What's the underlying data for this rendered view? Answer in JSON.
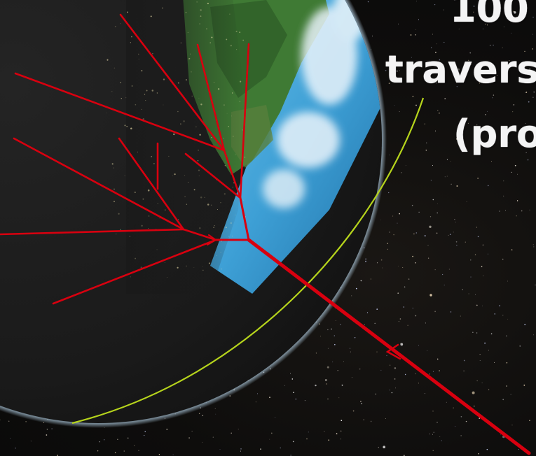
{
  "caption": {
    "line1": "100",
    "line2": "travers",
    "line3": "(pro"
  },
  "colors": {
    "space": "#0e0d0c",
    "earth_night": "#1b1b1b",
    "earth_ocean": "#3a9fd6",
    "earth_land": "#3f7a34",
    "cloud": "#e9f3fa",
    "shower_red": "#d8000f",
    "arc_yellow_green": "#b6d41c",
    "caption_text": "#f4f4f4"
  },
  "icons": {
    "earth": "earth-globe-icon",
    "direction_arrow": "arrowhead-icon"
  }
}
